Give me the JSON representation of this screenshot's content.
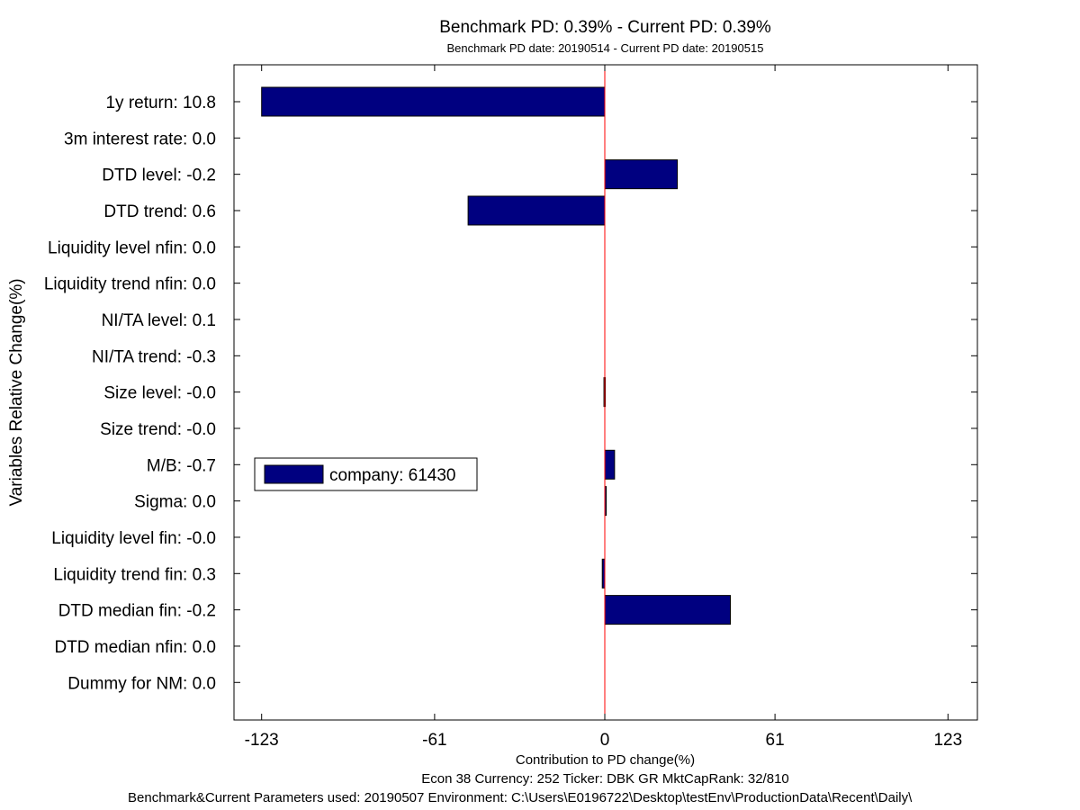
{
  "chart_data": {
    "type": "bar",
    "orientation": "horizontal",
    "title": "Benchmark PD: 0.39% - Current PD: 0.39%",
    "subtitle": "Benchmark PD date: 20190514 - Current PD date: 20190515",
    "xlabel": "Contribution to PD change(%)",
    "ylabel": "Variables Relative Change(%)",
    "xlim": [
      -135,
      135
    ],
    "xticks": [
      -123,
      -61,
      0,
      61,
      123
    ],
    "grid": false,
    "legend_position": "middle-left",
    "categories": [
      "1y return: 10.8",
      "3m interest rate: 0.0",
      "DTD level: -0.2",
      "DTD trend: 0.6",
      "Liquidity level nfin: 0.0",
      "Liquidity trend nfin: 0.0",
      "NI/TA level: 0.1",
      "NI/TA trend: -0.3",
      "Size level: -0.0",
      "Size trend: -0.0",
      "M/B: -0.7",
      "Sigma: 0.0",
      "Liquidity level fin: -0.0",
      "Liquidity trend fin: 0.3",
      "DTD median fin: -0.2",
      "DTD median nfin: 0.0",
      "Dummy for NM: 0.0"
    ],
    "series": [
      {
        "name": "company: 61430",
        "values": [
          -123,
          0,
          26,
          -49,
          0,
          0,
          0,
          0,
          -0.3,
          0,
          3.5,
          0.5,
          0,
          -0.9,
          45,
          0,
          0
        ]
      }
    ],
    "zero_line": 0,
    "colors": {
      "bar": "#000080",
      "zero_line": "#ff0000",
      "axis": "#000000"
    }
  },
  "footer": {
    "line1": "Econ 38  Currency: 252  Ticker: DBK GR  MktCapRank: 32/810",
    "line2": "Benchmark&Current Parameters used: 20190507     Environment: C:\\Users\\E0196722\\Desktop\\testEnv\\ProductionData\\Recent\\Daily\\"
  }
}
